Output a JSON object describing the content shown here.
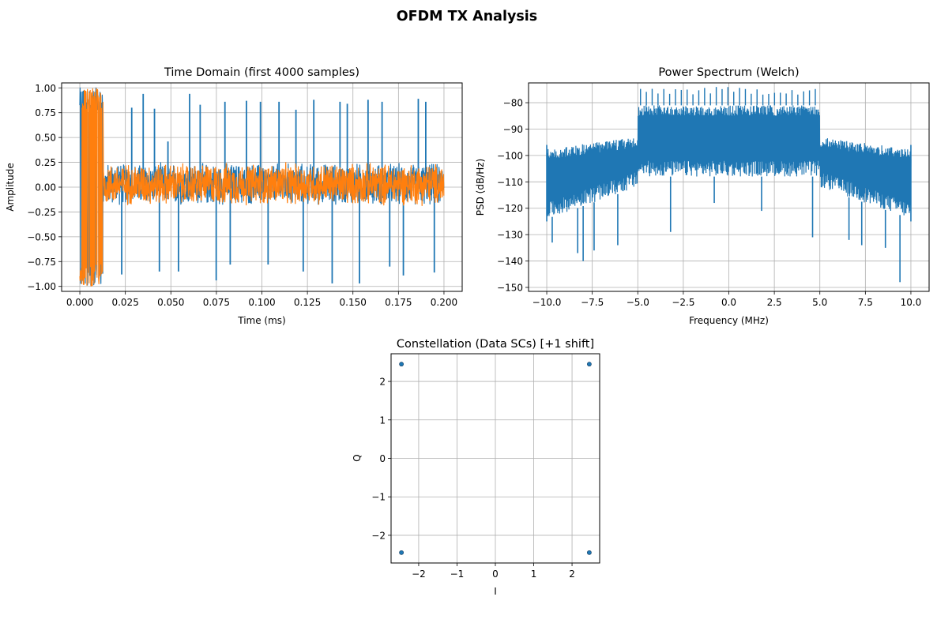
{
  "figure": {
    "suptitle": "OFDM TX Analysis"
  },
  "chart_data": [
    {
      "type": "line",
      "title": "Time Domain (first 4000 samples)",
      "xlabel": "Time (ms)",
      "ylabel": "Amplitude",
      "xlim": [
        -0.01,
        0.21
      ],
      "ylim": [
        -1.05,
        1.05
      ],
      "xticks": [
        0.0,
        0.025,
        0.05,
        0.075,
        0.1,
        0.125,
        0.15,
        0.175,
        0.2
      ],
      "xtick_labels": [
        "0.000",
        "0.025",
        "0.050",
        "0.075",
        "0.100",
        "0.125",
        "0.150",
        "0.175",
        "0.200"
      ],
      "yticks": [
        -1.0,
        -0.75,
        -0.5,
        -0.25,
        0.0,
        0.25,
        0.5,
        0.75,
        1.0
      ],
      "ytick_labels": [
        "−1.00",
        "−0.75",
        "−0.50",
        "−0.25",
        "0.00",
        "0.25",
        "0.50",
        "0.75",
        "1.00"
      ],
      "grid": true,
      "colors": {
        "series0": "#1f77b4",
        "series1": "#ff7f0e"
      },
      "sample_count": 4000,
      "burst_end_ms": 0.0128,
      "burst_amplitude": 1.0,
      "noise_band": [
        -0.2,
        0.25
      ],
      "spikes": [
        {
          "x": 0.021,
          "y": 0.21
        },
        {
          "x": 0.023,
          "y": -0.88
        },
        {
          "x": 0.0285,
          "y": 0.8
        },
        {
          "x": 0.0348,
          "y": 0.94
        },
        {
          "x": 0.041,
          "y": 0.79
        },
        {
          "x": 0.0437,
          "y": -0.85
        },
        {
          "x": 0.0484,
          "y": 0.46
        },
        {
          "x": 0.0542,
          "y": -0.85
        },
        {
          "x": 0.0603,
          "y": 0.94
        },
        {
          "x": 0.0661,
          "y": 0.83
        },
        {
          "x": 0.0749,
          "y": -0.94
        },
        {
          "x": 0.0797,
          "y": 0.86
        },
        {
          "x": 0.0826,
          "y": -0.78
        },
        {
          "x": 0.0915,
          "y": 0.87
        },
        {
          "x": 0.0992,
          "y": 0.86
        },
        {
          "x": 0.1034,
          "y": -0.78
        },
        {
          "x": 0.1094,
          "y": 0.86
        },
        {
          "x": 0.1187,
          "y": 0.78
        },
        {
          "x": 0.1227,
          "y": -0.85
        },
        {
          "x": 0.1285,
          "y": 0.88
        },
        {
          "x": 0.1386,
          "y": -0.97
        },
        {
          "x": 0.1429,
          "y": 0.86
        },
        {
          "x": 0.1469,
          "y": 0.84
        },
        {
          "x": 0.1536,
          "y": -0.97
        },
        {
          "x": 0.1583,
          "y": 0.88
        },
        {
          "x": 0.166,
          "y": 0.86
        },
        {
          "x": 0.1702,
          "y": -0.8
        },
        {
          "x": 0.1777,
          "y": -0.89
        },
        {
          "x": 0.1859,
          "y": 0.89
        },
        {
          "x": 0.19,
          "y": 0.86
        },
        {
          "x": 0.1947,
          "y": -0.86
        }
      ]
    },
    {
      "type": "line",
      "title": "Power Spectrum (Welch)",
      "xlabel": "Frequency (MHz)",
      "ylabel": "PSD (dB/Hz)",
      "xlim": [
        -11.0,
        11.0
      ],
      "ylim": [
        -151.5,
        -72.5
      ],
      "xticks": [
        -10.0,
        -7.5,
        -5.0,
        -2.5,
        0.0,
        2.5,
        5.0,
        7.5,
        10.0
      ],
      "xtick_labels": [
        "−10.0",
        "−7.5",
        "−5.0",
        "−2.5",
        "0.0",
        "2.5",
        "5.0",
        "7.5",
        "10.0"
      ],
      "yticks": [
        -150,
        -140,
        -130,
        -120,
        -110,
        -100,
        -90,
        -80
      ],
      "ytick_labels": [
        "−150",
        "−140",
        "−130",
        "−120",
        "−110",
        "−100",
        "−90",
        "−80"
      ],
      "grid": true,
      "colors": {
        "series0": "#1f77b4"
      },
      "freq_range": [
        -10.0,
        10.0
      ],
      "passband": [
        -5.0,
        5.0
      ],
      "passband_upper": -81,
      "passband_lower": -108,
      "stopband_edge_upper": -95,
      "stopband_edge_lower": -123,
      "dips": [
        {
          "x": -9.7,
          "y": -133
        },
        {
          "x": -8.3,
          "y": -137
        },
        {
          "x": -8.0,
          "y": -140
        },
        {
          "x": -7.4,
          "y": -136
        },
        {
          "x": -6.1,
          "y": -134
        },
        {
          "x": -3.2,
          "y": -129
        },
        {
          "x": -0.8,
          "y": -118
        },
        {
          "x": 1.8,
          "y": -121
        },
        {
          "x": 4.6,
          "y": -131
        },
        {
          "x": 6.6,
          "y": -132
        },
        {
          "x": 7.3,
          "y": -134
        },
        {
          "x": 8.6,
          "y": -135
        },
        {
          "x": 9.4,
          "y": -148
        }
      ]
    },
    {
      "type": "scatter",
      "title": "Constellation (Data SCs) [+1 shift]",
      "xlabel": "I",
      "ylabel": "Q",
      "xlim": [
        -2.72,
        2.72
      ],
      "ylim": [
        -2.72,
        2.72
      ],
      "xticks": [
        -2,
        -1,
        0,
        1,
        2
      ],
      "xtick_labels": [
        "−2",
        "−1",
        "0",
        "1",
        "2"
      ],
      "yticks": [
        -2,
        -1,
        0,
        1,
        2
      ],
      "ytick_labels": [
        "−2",
        "−1",
        "0",
        "1",
        "2"
      ],
      "grid": true,
      "colors": {
        "series0": "#1f77b4"
      },
      "points": [
        {
          "x": -2.45,
          "y": 2.45
        },
        {
          "x": 2.45,
          "y": 2.45
        },
        {
          "x": -2.45,
          "y": -2.45
        },
        {
          "x": 2.45,
          "y": -2.45
        }
      ]
    }
  ]
}
